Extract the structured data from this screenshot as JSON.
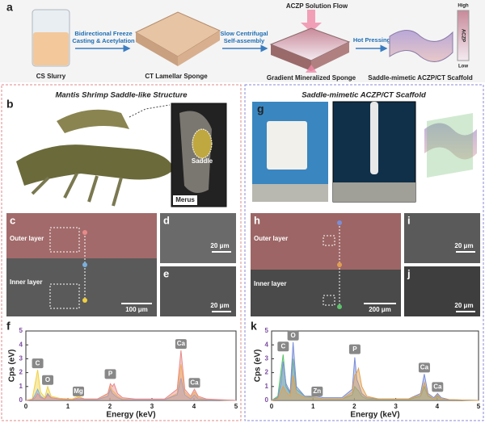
{
  "panel_a": {
    "label": "a",
    "slurry": "CS Slurry",
    "step1": [
      "Bidirectional Freeze",
      "Casting & Acetylation"
    ],
    "sponge": "CT Lamellar Sponge",
    "step2": [
      "Slow Centrifugal",
      "Self-assembly"
    ],
    "flow": "ACZP Solution Flow",
    "gradient_sponge": "Gradient Mineralized Sponge",
    "step3": "Hot Pressing",
    "scaffold": "Saddle-mimetic ACZP/CT Scaffold",
    "scale_high": "High",
    "scale_name": "ACZP",
    "scale_low": "Low"
  },
  "left": {
    "title": "Mantis Shrimp Saddle-like Structure",
    "b": {
      "label": "b",
      "saddle": "Saddle",
      "merus": "Merus"
    },
    "c": {
      "label": "c",
      "outer": "Outer layer",
      "inner": "Inner layer",
      "scale": "100 μm"
    },
    "d": {
      "label": "d",
      "scale": "20 μm"
    },
    "e": {
      "label": "e",
      "scale": "20 μm"
    },
    "f": {
      "label": "f",
      "type": "line",
      "xlabel": "Energy (keV)",
      "ylabel": "Cps (eV)",
      "x": [
        0,
        0.15,
        0.22,
        0.28,
        0.35,
        0.45,
        0.52,
        0.6,
        0.8,
        1.1,
        1.25,
        1.4,
        1.7,
        1.95,
        2.01,
        2.06,
        2.1,
        2.18,
        2.3,
        2.6,
        3.3,
        3.6,
        3.69,
        3.78,
        3.92,
        4.01,
        4.1,
        4.3,
        5
      ],
      "xlim": [
        0,
        5
      ],
      "xticks": [
        0,
        1,
        2,
        3,
        4,
        5
      ],
      "ylim": [
        0,
        5
      ],
      "yticks": [
        0,
        1,
        2,
        3,
        4,
        5
      ],
      "series": [
        {
          "color": "#f0d040",
          "values": [
            0,
            0.1,
            1.2,
            2.2,
            0.6,
            0.2,
            1.0,
            0.3,
            0.15,
            0.1,
            0.3,
            0.1,
            0.1,
            0.5,
            1.0,
            0.7,
            0.6,
            0.3,
            0.1,
            0.05,
            0.05,
            0.5,
            2.6,
            0.6,
            0.2,
            0.6,
            0.2,
            0.05,
            0
          ]
        },
        {
          "color": "#7ab0e0",
          "values": [
            0,
            0.05,
            0.4,
            0.8,
            0.3,
            0.1,
            0.5,
            0.2,
            0.1,
            0.05,
            0.1,
            0.05,
            0.05,
            0.3,
            0.8,
            0.5,
            0.4,
            0.2,
            0.05,
            0.05,
            0.05,
            0.4,
            1.6,
            0.4,
            0.1,
            0.4,
            0.1,
            0.05,
            0
          ]
        },
        {
          "color": "#e88a8a",
          "values": [
            0,
            0.05,
            0.2,
            0.5,
            0.2,
            0.1,
            0.4,
            0.2,
            0.1,
            0.05,
            0.2,
            0.1,
            0.1,
            0.5,
            1.2,
            1.0,
            1.2,
            0.5,
            0.2,
            0.1,
            0.1,
            0.8,
            3.6,
            0.8,
            0.3,
            0.8,
            0.3,
            0.1,
            0
          ]
        }
      ],
      "annotations": [
        "C",
        "O",
        "Mg",
        "P",
        "Ca",
        "Ca"
      ]
    }
  },
  "right": {
    "title": "Saddle-mimetic ACZP/CT Scaffold",
    "g": {
      "label": "g"
    },
    "h": {
      "label": "h",
      "outer": "Outer layer",
      "inner": "Inner layer",
      "scale": "200 μm"
    },
    "i": {
      "label": "i",
      "scale": "20 μm"
    },
    "j": {
      "label": "j",
      "scale": "20 μm"
    },
    "k": {
      "label": "k",
      "type": "line",
      "xlabel": "Energy (keV)",
      "ylabel": "Cps (eV)",
      "x": [
        0,
        0.15,
        0.22,
        0.28,
        0.35,
        0.45,
        0.52,
        0.6,
        0.8,
        1.1,
        1.25,
        1.4,
        1.7,
        1.95,
        2.01,
        2.06,
        2.1,
        2.18,
        2.3,
        2.6,
        3.3,
        3.6,
        3.69,
        3.78,
        3.92,
        4.01,
        4.1,
        4.3,
        5
      ],
      "xlim": [
        0,
        5
      ],
      "xticks": [
        0,
        1,
        2,
        3,
        4,
        5
      ],
      "ylim": [
        0,
        5
      ],
      "yticks": [
        0,
        1,
        2,
        3,
        4,
        5
      ],
      "series": [
        {
          "color": "#5cc46a",
          "values": [
            0,
            0.3,
            2.0,
            3.3,
            1.0,
            0.5,
            3.0,
            0.8,
            0.3,
            0.2,
            0.1,
            0.1,
            0.1,
            0.4,
            1.0,
            0.8,
            0.7,
            0.3,
            0.1,
            0.05,
            0.05,
            0.3,
            1.0,
            0.3,
            0.1,
            0.3,
            0.1,
            0.05,
            0
          ]
        },
        {
          "color": "#7a8ed8",
          "values": [
            0,
            0.2,
            1.2,
            2.8,
            1.2,
            0.6,
            4.2,
            1.0,
            0.3,
            0.3,
            0.2,
            0.2,
            0.2,
            0.8,
            3.1,
            1.5,
            1.2,
            0.5,
            0.2,
            0.1,
            0.1,
            0.5,
            1.9,
            0.5,
            0.2,
            0.5,
            0.2,
            0.05,
            0
          ]
        },
        {
          "color": "#e0a050",
          "values": [
            0,
            0.1,
            0.6,
            1.0,
            0.6,
            0.3,
            1.8,
            0.5,
            0.2,
            0.2,
            0.1,
            0.1,
            0.1,
            0.6,
            1.8,
            2.0,
            2.3,
            1.0,
            0.3,
            0.1,
            0.1,
            0.4,
            1.3,
            0.4,
            0.1,
            0.4,
            0.1,
            0.05,
            0
          ]
        }
      ],
      "annotations": [
        "C",
        "O",
        "Zn",
        "P",
        "Ca",
        "Ca"
      ]
    }
  }
}
